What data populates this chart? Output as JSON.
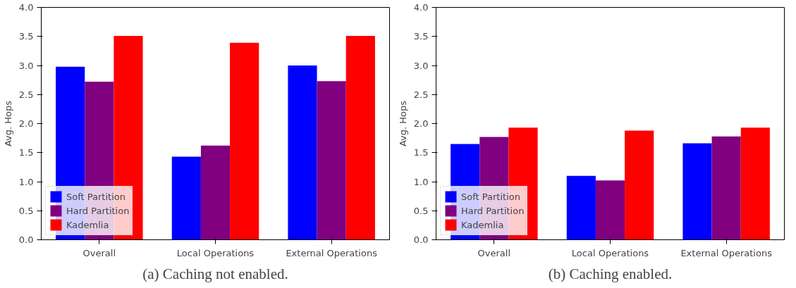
{
  "chart_data": [
    {
      "type": "bar",
      "categories": [
        "Overall",
        "Local Operations",
        "External Operations"
      ],
      "ylabel": "Avg. Hops",
      "ylim": [
        0,
        4
      ],
      "yticks": [
        {
          "value": 0,
          "label": "0.0"
        },
        {
          "value": 0.5,
          "label": "0.5"
        },
        {
          "value": 1,
          "label": "1.0"
        },
        {
          "value": 1.5,
          "label": "1.5"
        },
        {
          "value": 2,
          "label": "2.0"
        },
        {
          "value": 2.5,
          "label": "2.5"
        },
        {
          "value": 3,
          "label": "3.0"
        },
        {
          "value": 3.5,
          "label": "3.5"
        },
        {
          "value": 4,
          "label": "4.0"
        }
      ],
      "grid": false,
      "legend": "bottom left",
      "annotations": [
        "(a) Caching not enabled."
      ],
      "series": [
        {
          "name": "Soft Partition",
          "color": "#0000ff",
          "values": [
            2.98,
            1.43,
            3.0
          ]
        },
        {
          "name": "Hard Partition",
          "color": "#800080",
          "values": [
            2.72,
            1.62,
            2.73
          ]
        },
        {
          "name": "Kademlia",
          "color": "#ff0000",
          "values": [
            3.51,
            3.39,
            3.51
          ]
        }
      ]
    },
    {
      "type": "bar",
      "categories": [
        "Overall",
        "Local Operations",
        "External Operations"
      ],
      "ylabel": "Avg. Hops",
      "ylim": [
        0,
        4
      ],
      "yticks": [
        {
          "value": 0,
          "label": "0.0"
        },
        {
          "value": 0.5,
          "label": "0.5"
        },
        {
          "value": 1,
          "label": "1.0"
        },
        {
          "value": 1.5,
          "label": "1.5"
        },
        {
          "value": 2,
          "label": "2.0"
        },
        {
          "value": 2.5,
          "label": "2.5"
        },
        {
          "value": 3,
          "label": "3.0"
        },
        {
          "value": 3.5,
          "label": "3.5"
        },
        {
          "value": 4,
          "label": "4.0"
        }
      ],
      "grid": false,
      "legend": "bottom left",
      "annotations": [
        "(b) Caching enabled."
      ],
      "series": [
        {
          "name": "Soft Partition",
          "color": "#0000ff",
          "values": [
            1.65,
            1.1,
            1.66
          ]
        },
        {
          "name": "Hard Partition",
          "color": "#800080",
          "values": [
            1.77,
            1.02,
            1.78
          ]
        },
        {
          "name": "Kademlia",
          "color": "#ff0000",
          "values": [
            1.93,
            1.88,
            1.93
          ]
        }
      ]
    }
  ]
}
